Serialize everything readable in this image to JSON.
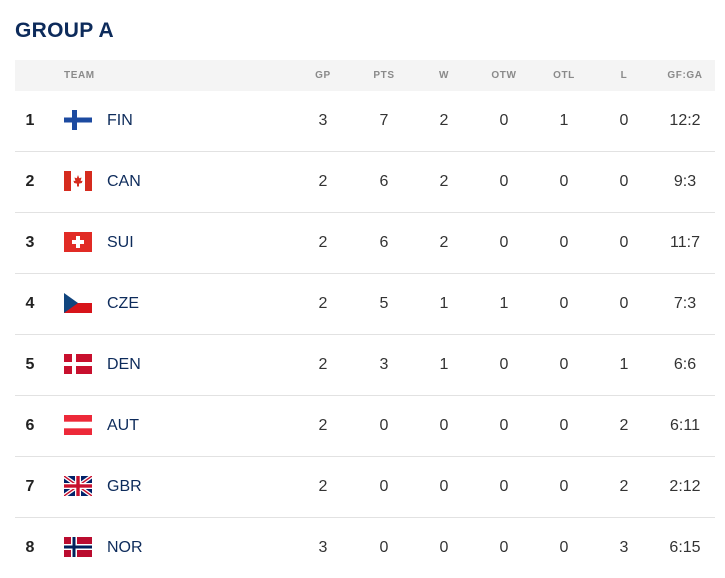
{
  "title": "GROUP A",
  "columns": {
    "team": "TEAM",
    "gp": "GP",
    "pts": "PTS",
    "w": "W",
    "otw": "OTW",
    "otl": "OTL",
    "l": "L",
    "gfga": "GF:GA"
  },
  "rows": [
    {
      "rank": "1",
      "team": "FIN",
      "flag": "finland-flag-icon",
      "gp": "3",
      "pts": "7",
      "w": "2",
      "otw": "0",
      "otl": "1",
      "l": "0",
      "gfga": "12:2"
    },
    {
      "rank": "2",
      "team": "CAN",
      "flag": "canada-flag-icon",
      "gp": "2",
      "pts": "6",
      "w": "2",
      "otw": "0",
      "otl": "0",
      "l": "0",
      "gfga": "9:3"
    },
    {
      "rank": "3",
      "team": "SUI",
      "flag": "switzerland-flag-icon",
      "gp": "2",
      "pts": "6",
      "w": "2",
      "otw": "0",
      "otl": "0",
      "l": "0",
      "gfga": "11:7"
    },
    {
      "rank": "4",
      "team": "CZE",
      "flag": "czechia-flag-icon",
      "gp": "2",
      "pts": "5",
      "w": "1",
      "otw": "1",
      "otl": "0",
      "l": "0",
      "gfga": "7:3"
    },
    {
      "rank": "5",
      "team": "DEN",
      "flag": "denmark-flag-icon",
      "gp": "2",
      "pts": "3",
      "w": "1",
      "otw": "0",
      "otl": "0",
      "l": "1",
      "gfga": "6:6"
    },
    {
      "rank": "6",
      "team": "AUT",
      "flag": "austria-flag-icon",
      "gp": "2",
      "pts": "0",
      "w": "0",
      "otw": "0",
      "otl": "0",
      "l": "2",
      "gfga": "6:11"
    },
    {
      "rank": "7",
      "team": "GBR",
      "flag": "great-britain-flag-icon",
      "gp": "2",
      "pts": "0",
      "w": "0",
      "otw": "0",
      "otl": "0",
      "l": "2",
      "gfga": "2:12"
    },
    {
      "rank": "8",
      "team": "NOR",
      "flag": "norway-flag-icon",
      "gp": "3",
      "pts": "0",
      "w": "0",
      "otw": "0",
      "otl": "0",
      "l": "3",
      "gfga": "6:15"
    }
  ],
  "colors": {
    "title": "#0d2b5b",
    "header_bg": "#f4f4f4",
    "header_text": "#8a8a8a",
    "team_text": "#0d2b5b",
    "divider": "#e2e2e2"
  }
}
